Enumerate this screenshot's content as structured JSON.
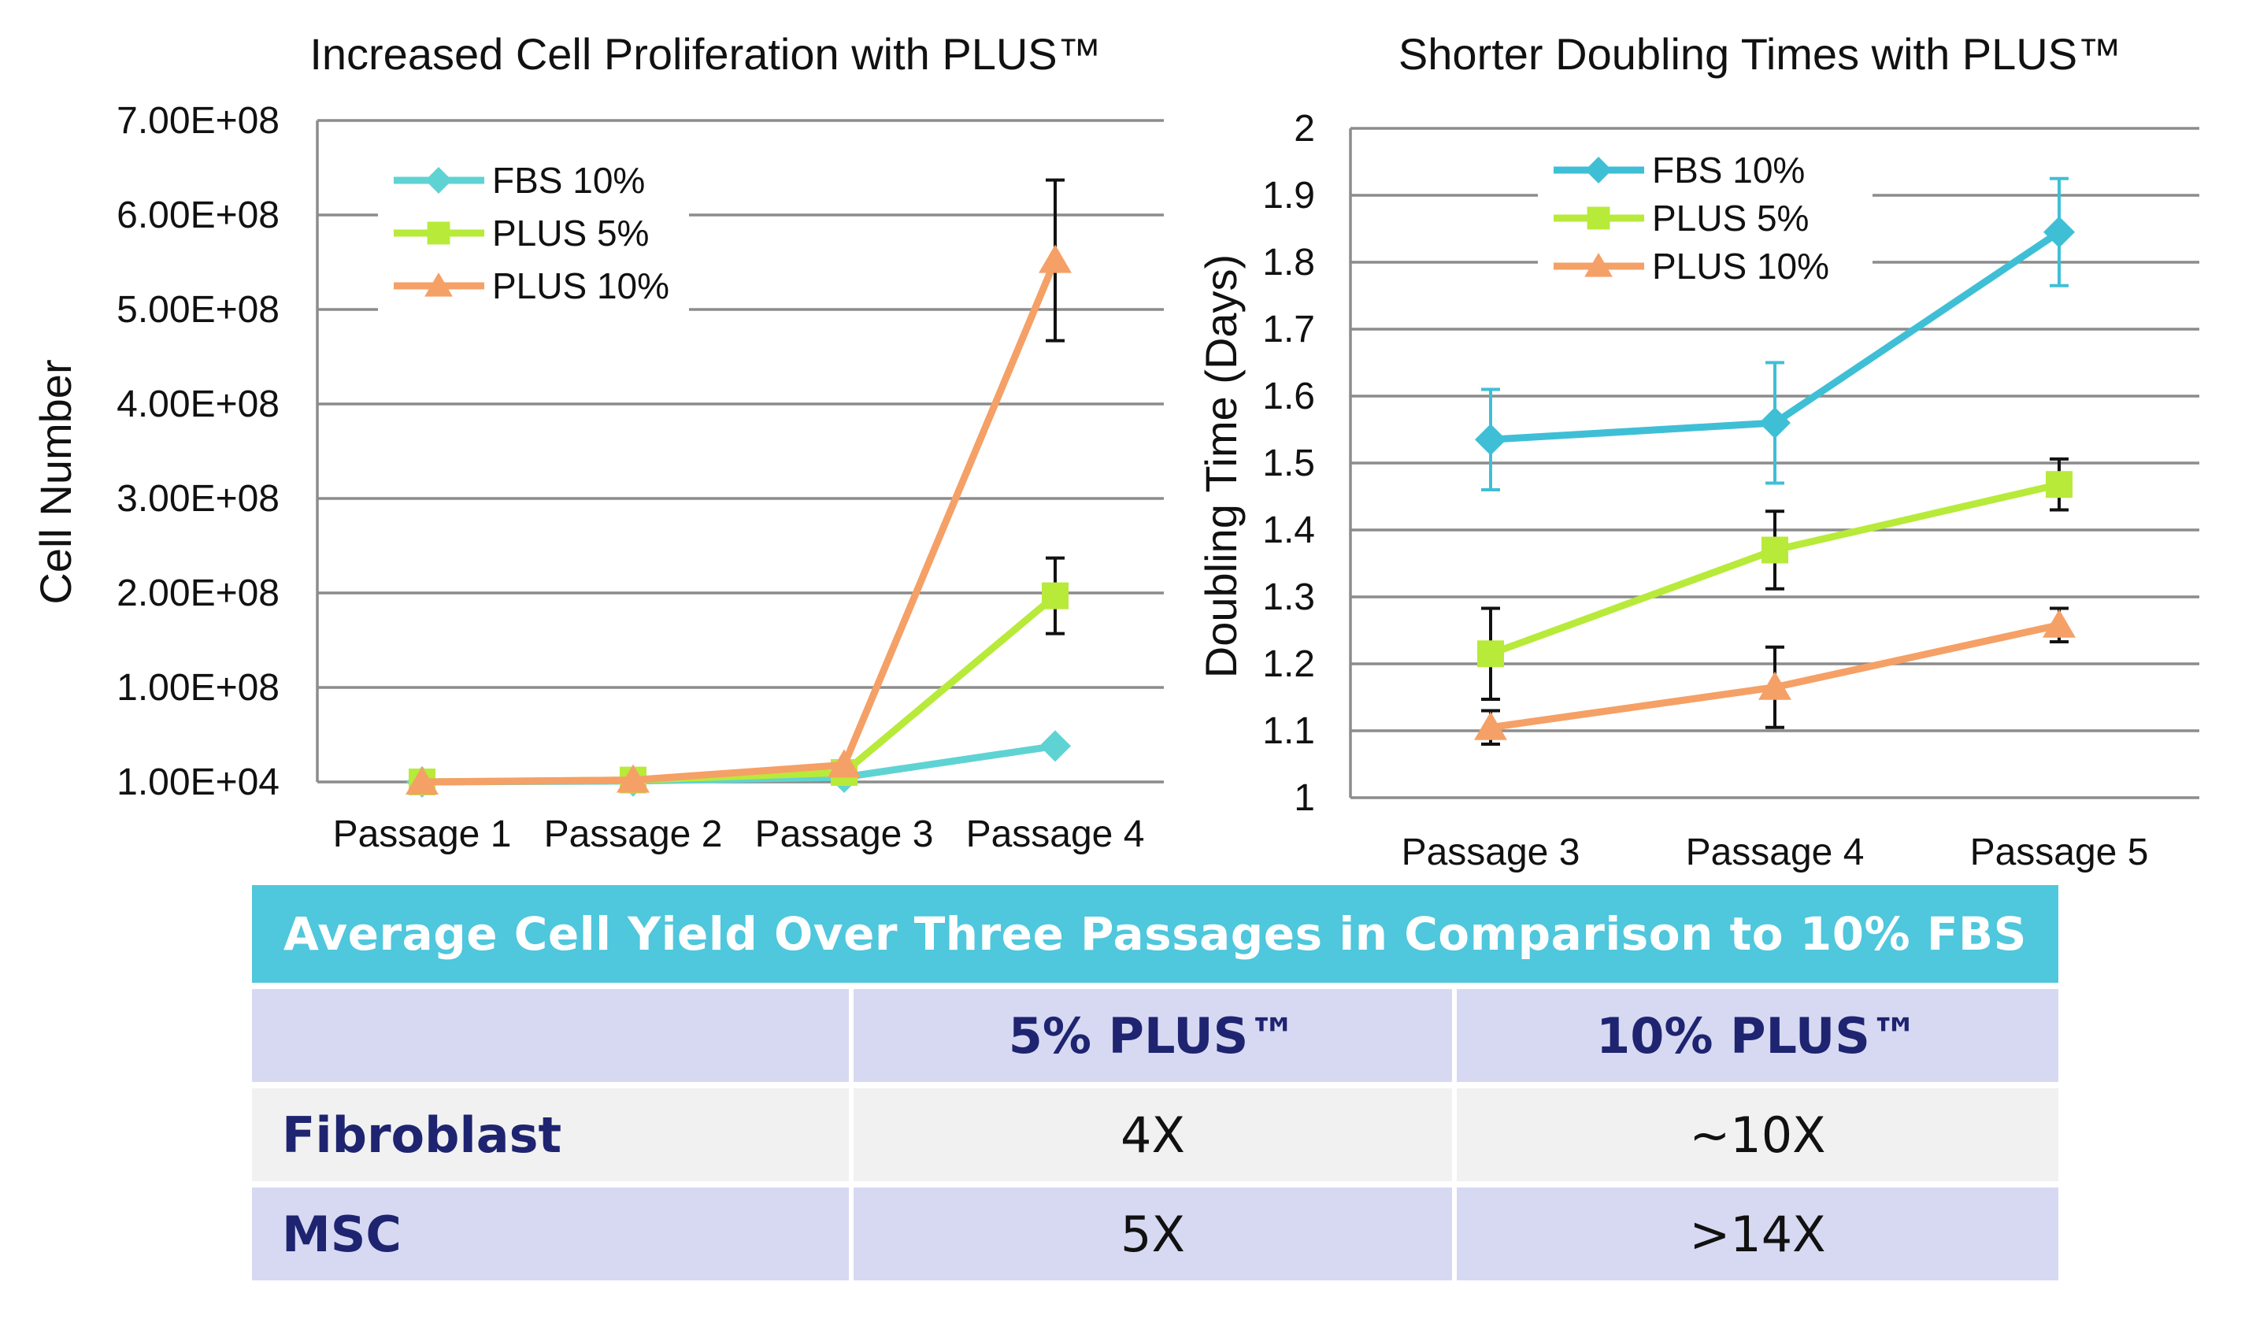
{
  "chart_data": [
    {
      "type": "line",
      "title": "Increased Cell Proliferation with PLUS™",
      "xlabel": "",
      "ylabel": "Cell Number",
      "categories": [
        "Passage 1",
        "Passage 2",
        "Passage 3",
        "Passage 4"
      ],
      "y_ticks": [
        "1.00E+04",
        "1.00E+08",
        "2.00E+08",
        "3.00E+08",
        "4.00E+08",
        "5.00E+08",
        "6.00E+08",
        "7.00E+08"
      ],
      "ylim": [
        0,
        700000000
      ],
      "grid": true,
      "legend_position": "top-left",
      "series": [
        {
          "name": "FBS 10%",
          "color": "#5fd3d3",
          "marker": "diamond",
          "values": [
            10000,
            1000000,
            5000000,
            38000000
          ],
          "error": [
            null,
            null,
            null,
            null
          ]
        },
        {
          "name": "PLUS 5%",
          "color": "#b8ea3a",
          "marker": "square",
          "values": [
            10000,
            2000000,
            10000000,
            197000000
          ],
          "error": [
            null,
            null,
            null,
            40000000
          ]
        },
        {
          "name": "PLUS 10%",
          "color": "#f5a066",
          "marker": "triangle",
          "values": [
            10000,
            2000000,
            18000000,
            552000000
          ],
          "error": [
            null,
            null,
            null,
            85000000
          ]
        }
      ]
    },
    {
      "type": "line",
      "title": "Shorter Doubling Times with PLUS™",
      "xlabel": "",
      "ylabel": "Doubling Time (Days)",
      "categories": [
        "Passage 3",
        "Passage 4",
        "Passage 5"
      ],
      "y_ticks": [
        "1",
        "1.1",
        "1.2",
        "1.3",
        "1.4",
        "1.5",
        "1.6",
        "1.7",
        "1.8",
        "1.9",
        "2"
      ],
      "ylim": [
        1,
        2
      ],
      "grid": true,
      "legend_position": "top-left",
      "series": [
        {
          "name": "FBS 10%",
          "color": "#3fbfd6",
          "marker": "diamond",
          "values": [
            1.535,
            1.56,
            1.845
          ],
          "error": [
            0.075,
            0.09,
            0.08
          ]
        },
        {
          "name": "PLUS 5%",
          "color": "#b8ea3a",
          "marker": "square",
          "values": [
            1.215,
            1.37,
            1.468
          ],
          "error": [
            0.068,
            0.058,
            0.038
          ]
        },
        {
          "name": "PLUS 10%",
          "color": "#f5a066",
          "marker": "triangle",
          "values": [
            1.105,
            1.165,
            1.258
          ],
          "error": [
            0.025,
            0.06,
            0.025
          ]
        }
      ]
    }
  ],
  "table": {
    "banner": "Average Cell Yield Over Three Passages in Comparison to 10% FBS",
    "banner_color": "#4fc7dc",
    "header_color": "#d7d9f3",
    "row_colors": [
      "#f1f1f1",
      "#d7d9f3"
    ],
    "headers": [
      "",
      "5% PLUS™",
      "10% PLUS™"
    ],
    "rows": [
      {
        "label": "Fibroblast",
        "values": [
          "4X",
          "~10X"
        ]
      },
      {
        "label": "MSC",
        "values": [
          "5X",
          ">14X"
        ]
      }
    ]
  }
}
